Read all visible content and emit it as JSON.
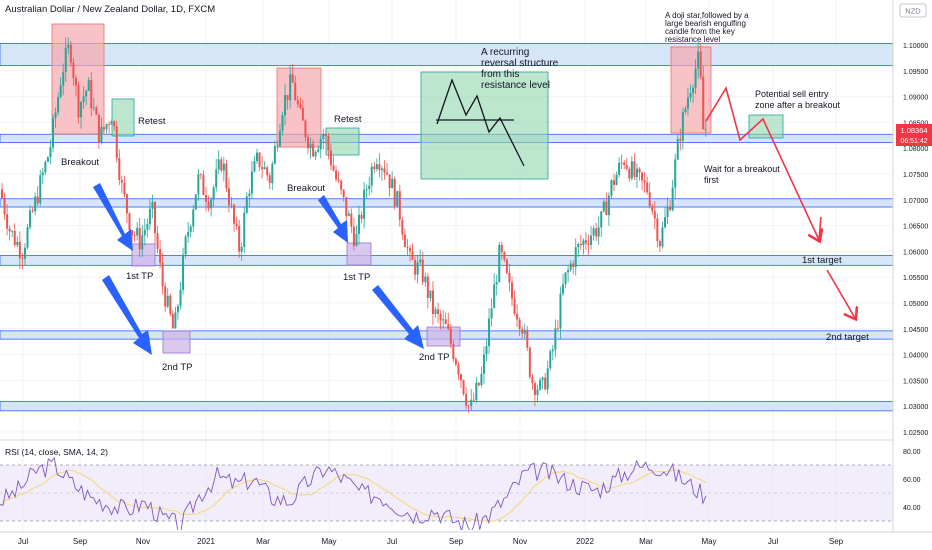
{
  "header": {
    "symbol_title": "Australian Dollar / New Zealand Dollar, 1D, FXCM",
    "currency": "NZD"
  },
  "price_tag": {
    "price": "1.08364",
    "countdown": "06:51:42",
    "color": "#f23645"
  },
  "colors": {
    "up": "#26a69a",
    "down": "#ef5350",
    "zone_fill": "#cfe0f7",
    "zone_edge": "#2962ff",
    "red_box": "#f7a8ae",
    "green_box": "#8fd6ae",
    "purple_box": "#cfb6ea",
    "arrow_blue": "#2962ff",
    "arrow_red": "#f23645",
    "rsi_line": "#7e57c2",
    "rsi_ma": "#f5d676"
  },
  "chart_data": {
    "type": "candlestick",
    "y_axis": {
      "min": 1.0225,
      "max": 1.1035,
      "ticks": [
        "1.10000",
        "1.09500",
        "1.09000",
        "1.08500",
        "1.08000",
        "1.07500",
        "1.07000",
        "1.06500",
        "1.06000",
        "1.05500",
        "1.05000",
        "1.04500",
        "1.04000",
        "1.03500",
        "1.03000",
        "1.02500"
      ]
    },
    "x_axis": {
      "labels": [
        "Jul",
        "Sep",
        "Nov",
        "2021",
        "Mar",
        "May",
        "Jul",
        "Sep",
        "Nov",
        "2022",
        "Mar",
        "May",
        "Jul",
        "Sep"
      ]
    },
    "price_path": [
      [
        0,
        1.072
      ],
      [
        10,
        1.064
      ],
      [
        22,
        1.06
      ],
      [
        36,
        1.07
      ],
      [
        50,
        1.08
      ],
      [
        62,
        1.095
      ],
      [
        70,
        1.1
      ],
      [
        78,
        1.088
      ],
      [
        88,
        1.092
      ],
      [
        100,
        1.082
      ],
      [
        112,
        1.087
      ],
      [
        122,
        1.072
      ],
      [
        132,
        1.064
      ],
      [
        140,
        1.062
      ],
      [
        152,
        1.068
      ],
      [
        162,
        1.054
      ],
      [
        174,
        1.044
      ],
      [
        186,
        1.062
      ],
      [
        198,
        1.074
      ],
      [
        210,
        1.07
      ],
      [
        222,
        1.078
      ],
      [
        234,
        1.065
      ],
      [
        240,
        1.06
      ],
      [
        248,
        1.072
      ],
      [
        258,
        1.078
      ],
      [
        270,
        1.074
      ],
      [
        282,
        1.088
      ],
      [
        292,
        1.093
      ],
      [
        300,
        1.086
      ],
      [
        312,
        1.08
      ],
      [
        324,
        1.083
      ],
      [
        336,
        1.074
      ],
      [
        346,
        1.068
      ],
      [
        356,
        1.062
      ],
      [
        366,
        1.072
      ],
      [
        376,
        1.079
      ],
      [
        386,
        1.076
      ],
      [
        398,
        1.069
      ],
      [
        410,
        1.058
      ],
      [
        422,
        1.056
      ],
      [
        434,
        1.048
      ],
      [
        446,
        1.045
      ],
      [
        458,
        1.038
      ],
      [
        470,
        1.029
      ],
      [
        482,
        1.036
      ],
      [
        492,
        1.05
      ],
      [
        500,
        1.06
      ],
      [
        510,
        1.052
      ],
      [
        522,
        1.046
      ],
      [
        532,
        1.035
      ],
      [
        542,
        1.033
      ],
      [
        552,
        1.04
      ],
      [
        564,
        1.054
      ],
      [
        576,
        1.06
      ],
      [
        588,
        1.063
      ],
      [
        600,
        1.065
      ],
      [
        612,
        1.073
      ],
      [
        624,
        1.078
      ],
      [
        636,
        1.074
      ],
      [
        648,
        1.072
      ],
      [
        660,
        1.062
      ],
      [
        670,
        1.07
      ],
      [
        680,
        1.083
      ],
      [
        690,
        1.092
      ],
      [
        698,
        1.097
      ],
      [
        706,
        1.0836
      ]
    ],
    "support_resistance_zones": [
      {
        "low": 1.096,
        "high": 1.1003
      },
      {
        "low": 1.0811,
        "high": 1.0827
      },
      {
        "low": 1.0686,
        "high": 1.0702
      },
      {
        "low": 1.0573,
        "high": 1.0592
      },
      {
        "low": 1.043,
        "high": 1.0446
      },
      {
        "low": 1.0291,
        "high": 1.0309
      }
    ],
    "rsi": {
      "label": "RSI (14, close, SMA, 14, 2)",
      "levels": [
        "80.00",
        "60.00",
        "40.00"
      ],
      "upper_band": 70,
      "lower_band": 30,
      "values": [
        44,
        52,
        66,
        70,
        57,
        47,
        42,
        38,
        43,
        32,
        27,
        48,
        62,
        56,
        60,
        47,
        44,
        58,
        68,
        60,
        50,
        48,
        40,
        34,
        38,
        31,
        26,
        34,
        47,
        64,
        66,
        60,
        55,
        52,
        60,
        68,
        70,
        66,
        57,
        48
      ]
    }
  },
  "annotations": {
    "retest_left": "Retest",
    "retest_right": "Retest",
    "breakout_left": "Breakout",
    "breakout_right": "Breakout",
    "tp1_left": "1st TP",
    "tp1_right": "1st TP",
    "tp2_left": "2nd TP",
    "tp2_right": "2nd TP",
    "pattern_note": [
      "A recurring",
      "reversal structure",
      "from this",
      "resistance level"
    ],
    "doji_note": [
      "A doji star,followed by a",
      "large bearish engulfing",
      "candle from the key",
      "resistance level"
    ],
    "sell_zone_note": [
      "Potential sell entry",
      "zone after a breakout"
    ],
    "wait_note": [
      "Wait for a breakout",
      "first"
    ],
    "target_1": "1st target",
    "target_2": "2nd target"
  }
}
